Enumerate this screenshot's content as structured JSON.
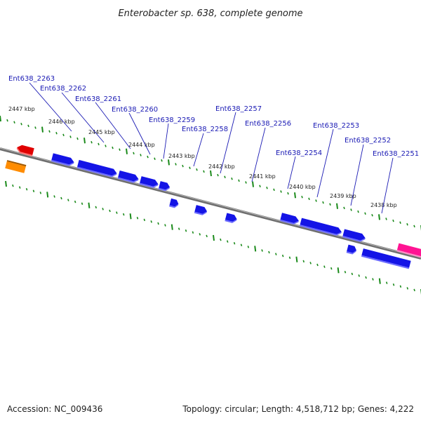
{
  "title": "Enterobacter sp. 638, complete genome",
  "footer": {
    "accession": "Accession: NC_009436",
    "summary": "Topology: circular; Length: 4,518,712 bp; Genes: 4,222"
  },
  "colors": {
    "gene_blue": "#1414e6",
    "gene_blue_light": "#6a6aff",
    "gene_red": "#e00000",
    "gene_orange": "#ff8c00",
    "gene_magenta": "#ff1493",
    "tick_green": "#1a8a1a",
    "backbone": "#777777",
    "label_blue": "#1a1ab4"
  },
  "kbp_ticks": [
    "2447 kbp",
    "2446 kbp",
    "2445 kbp",
    "2444 kbp",
    "2443 kbp",
    "2442 kbp",
    "2441 kbp",
    "2440 kbp",
    "2439 kbp",
    "2438 kbp"
  ],
  "gene_labels": [
    "Ent638_2263",
    "Ent638_2262",
    "Ent638_2261",
    "Ent638_2260",
    "Ent638_2259",
    "Ent638_2258",
    "Ent638_2257",
    "Ent638_2256",
    "Ent638_2254",
    "Ent638_2253",
    "Ent638_2252",
    "Ent638_2251"
  ]
}
